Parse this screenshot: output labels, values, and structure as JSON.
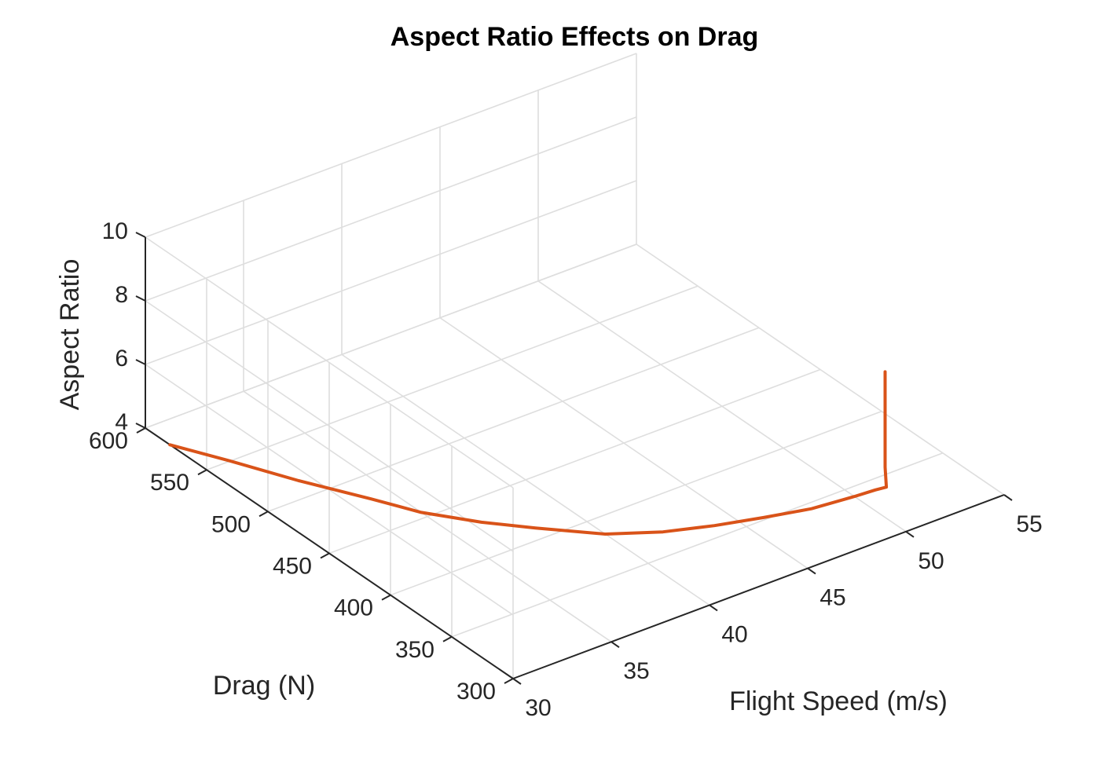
{
  "chart_data": {
    "type": "line3d",
    "title": "Aspect Ratio Effects on Drag",
    "xlabel": "Flight Speed (m/s)",
    "ylabel": "Drag (N)",
    "zlabel": "Aspect Ratio",
    "xlim": [
      30,
      55
    ],
    "ylim": [
      300,
      600
    ],
    "zlim": [
      4,
      10
    ],
    "xticks": [
      30,
      35,
      40,
      45,
      50,
      55
    ],
    "yticks": [
      300,
      350,
      400,
      450,
      500,
      550,
      600
    ],
    "zticks": [
      4,
      6,
      8,
      10
    ],
    "grid": true,
    "line_color": "#d95319",
    "series": [
      {
        "x": [
          30.0,
          31.2,
          32.5,
          34.0,
          35.0,
          36.5,
          38.0,
          40.0,
          42.0,
          44.0,
          46.0,
          48.0,
          50.0,
          51.0,
          51.5,
          51.5,
          51.5,
          51.5,
          51.5,
          51.5,
          51.5,
          51.5
        ],
        "y": [
          580,
          550,
          515,
          480,
          455,
          430,
          410,
          385,
          370,
          360,
          352,
          345,
          342,
          341,
          340,
          341,
          341,
          341,
          341,
          341,
          341,
          341
        ],
        "z": [
          4.0,
          4.0,
          4.0,
          4.0,
          4.0,
          4.0,
          4.0,
          4.0,
          4.0,
          4.0,
          4.0,
          4.0,
          4.0,
          4.0,
          4.0,
          4.6,
          5.0,
          5.4,
          6.0,
          6.4,
          7.0,
          7.6
        ]
      }
    ]
  }
}
